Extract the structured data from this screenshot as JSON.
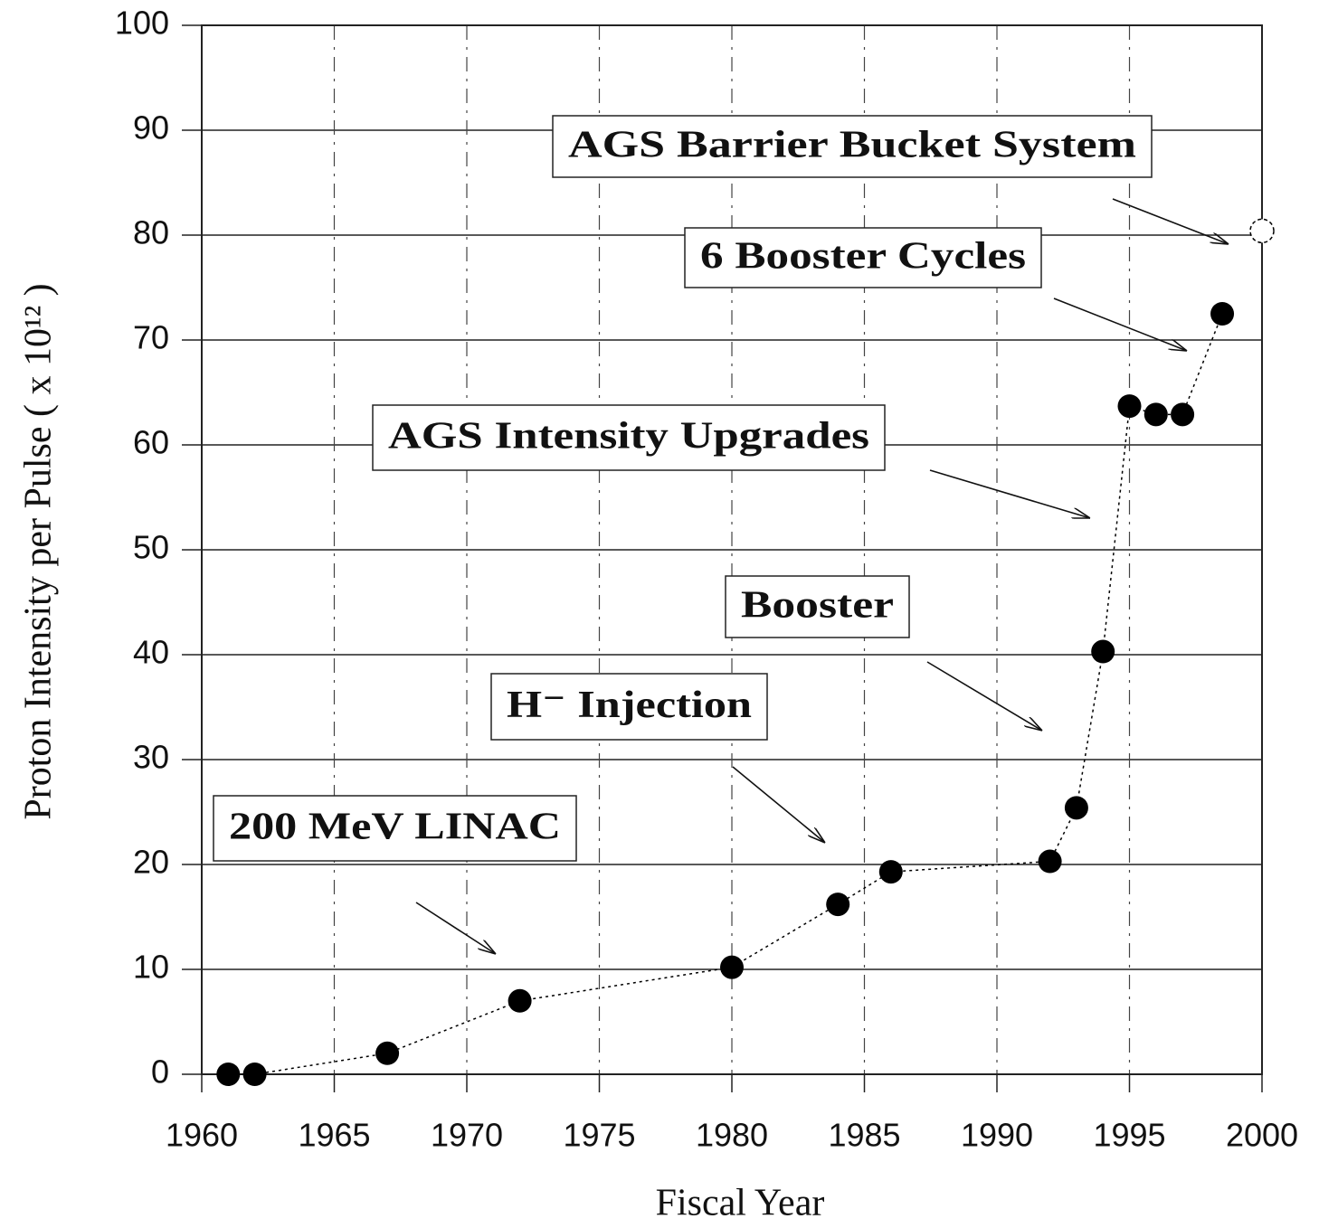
{
  "chart_data": {
    "type": "scatter",
    "xlabel": "Fiscal Year",
    "ylabel": "Proton Intensity per Pulse ( x 10¹² )",
    "series": [
      {
        "color": "#000000",
        "marker": "filled",
        "line": "dotted",
        "x": [
          1961,
          1962,
          1967,
          1972,
          1980,
          1984,
          1986,
          1992,
          1993,
          1994,
          1995,
          1996,
          1997,
          1998.5
        ],
        "values": [
          0,
          0,
          2,
          7,
          10.2,
          16.2,
          19.3,
          20.3,
          25.4,
          40.3,
          63.7,
          62.9,
          62.9,
          72.5
        ]
      },
      {
        "color": "#000000",
        "marker": "open",
        "x": [
          2000
        ],
        "values": [
          80.4
        ]
      }
    ],
    "annotations": [
      "AGS Barrier Bucket System",
      "6 Booster Cycles",
      "AGS Intensity Upgrades",
      "Booster",
      "H⁻ Injection",
      "200 MeV LINAC"
    ],
    "xlim": [
      1960,
      2000
    ],
    "xticks": [
      1960,
      1965,
      1970,
      1975,
      1980,
      1985,
      1990,
      1995,
      2000
    ],
    "ylim": [
      0,
      100
    ],
    "yticks": [
      0,
      10,
      20,
      30,
      40,
      50,
      60,
      70,
      80,
      90,
      100
    ],
    "grid": true
  }
}
